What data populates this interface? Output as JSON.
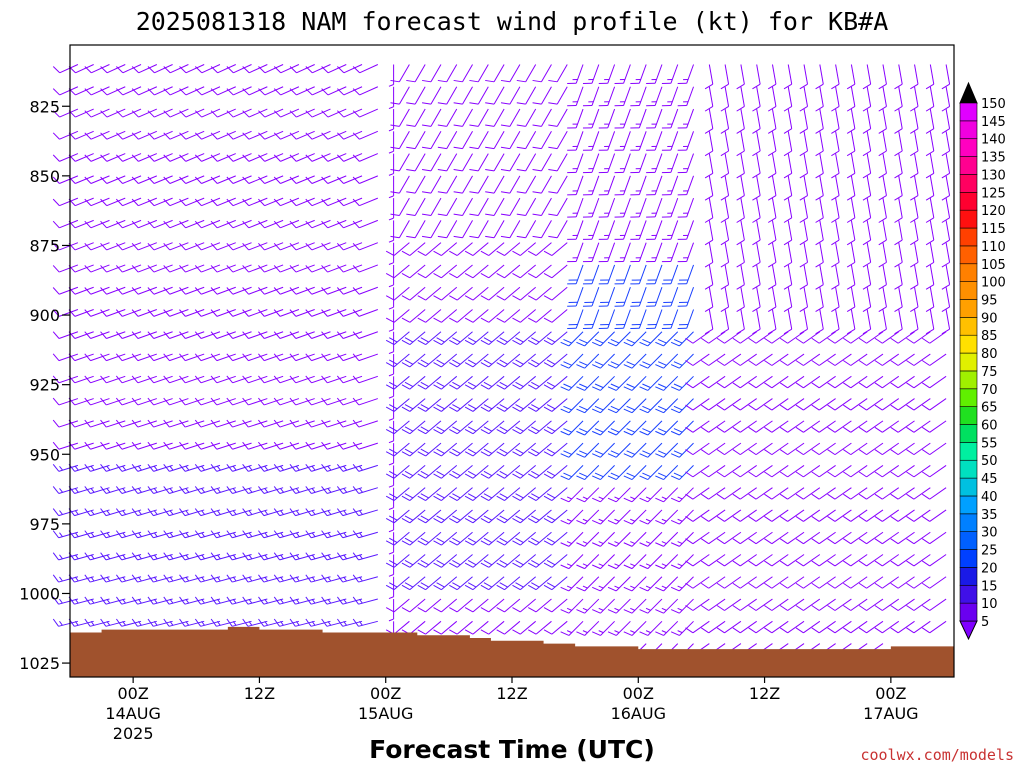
{
  "chart_data": {
    "type": "wind-barb time-height plot",
    "title": "2025081318 NAM forecast wind profile (kt) for KB#A",
    "xlabel": "Forecast Time (UTC)",
    "ylabel": "",
    "watermark": "coolwx.com/models",
    "x_ticks": [
      {
        "label": "00Z",
        "date": "14AUG",
        "year": "2025",
        "hours": 6
      },
      {
        "label": "12Z",
        "date": "",
        "year": "",
        "hours": 18
      },
      {
        "label": "00Z",
        "date": "15AUG",
        "year": "",
        "hours": 30
      },
      {
        "label": "12Z",
        "date": "",
        "year": "",
        "hours": 42
      },
      {
        "label": "00Z",
        "date": "16AUG",
        "year": "",
        "hours": 54
      },
      {
        "label": "12Z",
        "date": "",
        "year": "",
        "hours": 66
      },
      {
        "label": "00Z",
        "date": "17AUG",
        "year": "",
        "hours": 78
      }
    ],
    "y_ticks": [
      825,
      850,
      875,
      900,
      925,
      950,
      975,
      1000,
      1025
    ],
    "ylim": [
      1030,
      803
    ],
    "xlim": [
      0,
      84
    ],
    "colorbar": {
      "labels": [
        "5",
        "10",
        "15",
        "20",
        "25",
        "30",
        "35",
        "40",
        "45",
        "50",
        "55",
        "60",
        "65",
        "70",
        "75",
        "80",
        "85",
        "90",
        "95",
        "100",
        "105",
        "110",
        "115",
        "120",
        "125",
        "130",
        "135",
        "140",
        "145",
        "150"
      ],
      "colors": [
        "#8000ff",
        "#6a00f0",
        "#4010e8",
        "#1a1ae6",
        "#0040ff",
        "#0060ff",
        "#0080ff",
        "#00a0ff",
        "#00c0e0",
        "#00e0c0",
        "#00f0a0",
        "#00e060",
        "#20e020",
        "#60f000",
        "#a0f000",
        "#e0f000",
        "#ffe000",
        "#ffc000",
        "#ffa000",
        "#ff9000",
        "#ff8000",
        "#ff6000",
        "#ff4000",
        "#ff1010",
        "#ff0030",
        "#ff0060",
        "#ff0090",
        "#ff00c0",
        "#f000e0",
        "#e000ff"
      ]
    },
    "colors": {
      "terrain": "#a0522d",
      "barb_light": "#8800ff",
      "barb_mid": "#5a18ff",
      "barb_strong": "#1a40ff"
    },
    "terrain_surface_hpa": [
      {
        "hours": 0,
        "p": 1014
      },
      {
        "hours": 3,
        "p": 1013
      },
      {
        "hours": 6,
        "p": 1013
      },
      {
        "hours": 9,
        "p": 1013
      },
      {
        "hours": 12,
        "p": 1013
      },
      {
        "hours": 15,
        "p": 1012
      },
      {
        "hours": 18,
        "p": 1013
      },
      {
        "hours": 21,
        "p": 1013
      },
      {
        "hours": 24,
        "p": 1014
      },
      {
        "hours": 27,
        "p": 1014
      },
      {
        "hours": 30,
        "p": 1014
      },
      {
        "hours": 33,
        "p": 1015
      },
      {
        "hours": 36,
        "p": 1015
      },
      {
        "hours": 38,
        "p": 1016
      },
      {
        "hours": 40,
        "p": 1017
      },
      {
        "hours": 42,
        "p": 1017
      },
      {
        "hours": 45,
        "p": 1018
      },
      {
        "hours": 48,
        "p": 1019
      },
      {
        "hours": 51,
        "p": 1019
      },
      {
        "hours": 54,
        "p": 1020
      },
      {
        "hours": 57,
        "p": 1020
      },
      {
        "hours": 60,
        "p": 1020
      },
      {
        "hours": 63,
        "p": 1020
      },
      {
        "hours": 66,
        "p": 1020
      },
      {
        "hours": 69,
        "p": 1020
      },
      {
        "hours": 72,
        "p": 1020
      },
      {
        "hours": 75,
        "p": 1020
      },
      {
        "hours": 78,
        "p": 1019
      },
      {
        "hours": 81,
        "p": 1019
      },
      {
        "hours": 84,
        "p": 1019
      }
    ],
    "barb_columns": {
      "hour_start": 0,
      "hour_end": 84,
      "hour_step": 1.5,
      "pressure_levels_hpa": [
        810,
        818,
        826,
        834,
        842,
        850,
        858,
        866,
        874,
        882,
        890,
        898,
        906,
        914,
        922,
        930,
        938,
        946,
        954,
        962,
        970,
        978,
        986,
        994,
        1002,
        1010,
        1018
      ]
    }
  }
}
